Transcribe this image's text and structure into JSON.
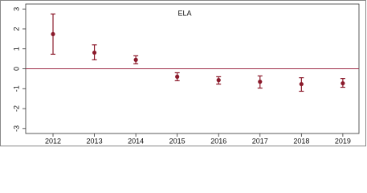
{
  "chart_data": {
    "type": "errorbar",
    "title": "ELA",
    "x": [
      2012,
      2013,
      2014,
      2015,
      2016,
      2017,
      2018,
      2019
    ],
    "series": [
      {
        "color": "#8b1a2b",
        "values": [
          1.74,
          0.81,
          0.45,
          -0.4,
          -0.57,
          -0.65,
          -0.77,
          -0.73
        ],
        "ci_low": [
          0.73,
          0.45,
          0.25,
          -0.6,
          -0.77,
          -0.97,
          -1.13,
          -0.93
        ],
        "ci_high": [
          2.75,
          1.2,
          0.65,
          -0.2,
          -0.4,
          -0.36,
          -0.45,
          -0.49
        ]
      }
    ],
    "reference_line": 0,
    "reference_color": "#a0304a",
    "xlim": [
      2011.34,
      2019.39
    ],
    "xticks": [
      2012,
      2013,
      2014,
      2015,
      2016,
      2017,
      2018,
      2019
    ],
    "ylim": [
      -3.25,
      3.25
    ],
    "yticks": [
      -3,
      -2,
      -1,
      0,
      1,
      2,
      3
    ]
  }
}
